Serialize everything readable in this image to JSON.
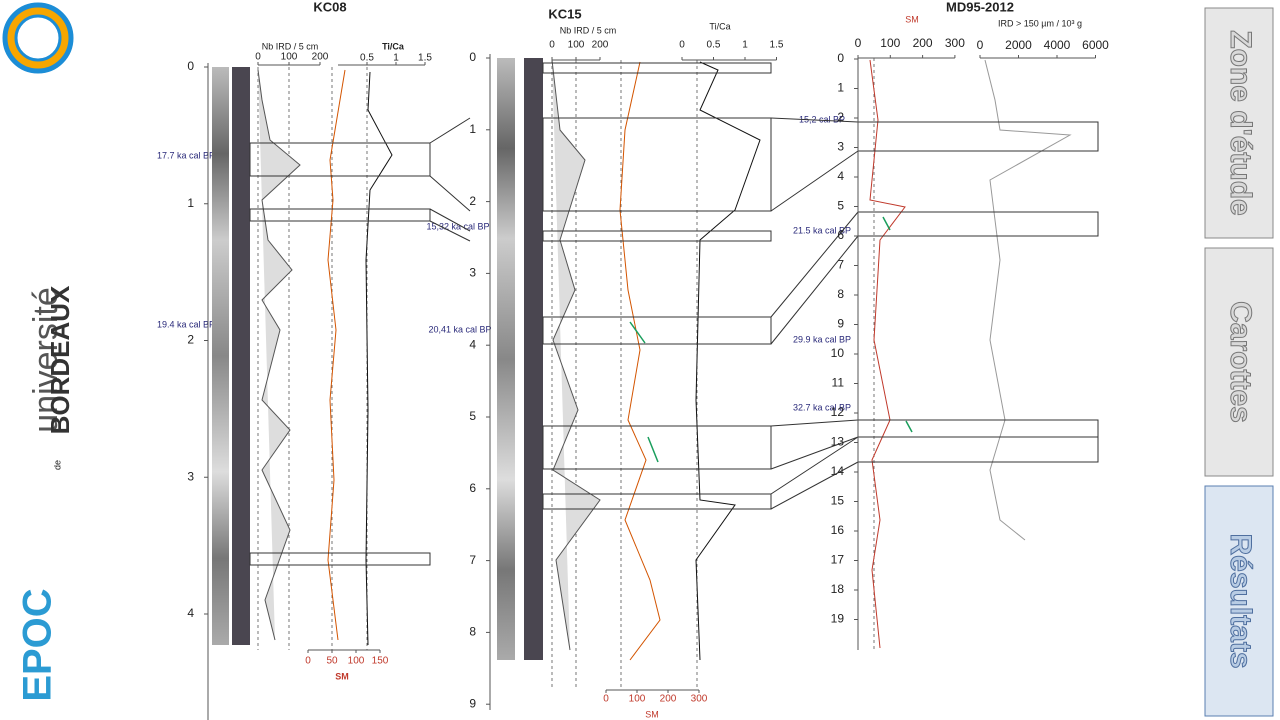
{
  "sidebar": {
    "university": "université",
    "university_de": "de",
    "university_name": "BORDEAUX",
    "lab": "EPOC"
  },
  "nav": [
    {
      "label": "Zone d'étude"
    },
    {
      "label": "Carottes"
    },
    {
      "label": "Résultats"
    }
  ],
  "cores": [
    {
      "name": "KC08",
      "depth_ticks": [
        0,
        1,
        2,
        3,
        4
      ],
      "ird_label": "Nb IRD / 5 cm",
      "ird_ticks": [
        0,
        100,
        200
      ],
      "tica_label": "Ti/Ca",
      "tica_ticks": [
        0.5,
        1,
        1.5
      ],
      "sm_label": "SM",
      "sm_ticks": [
        0,
        50,
        100,
        150
      ],
      "ages": [
        "17.7 ka cal BP",
        "19.4 ka cal BP"
      ]
    },
    {
      "name": "KC15",
      "depth_ticks": [
        0,
        1,
        2,
        3,
        4,
        5,
        6,
        7,
        8,
        9
      ],
      "ird_label": "Nb IRD / 5 cm",
      "ird_ticks": [
        0,
        100,
        200
      ],
      "tica_label": "Ti/Ca",
      "tica_ticks": [
        0,
        0.5,
        1,
        1.5
      ],
      "sm_label": "SM",
      "sm_ticks": [
        0,
        100,
        200,
        300
      ],
      "ages": [
        "15,32 ka cal BP",
        "20,41 ka cal BP"
      ]
    },
    {
      "name": "MD95-2012",
      "depth_ticks": [
        0,
        1,
        2,
        3,
        4,
        5,
        6,
        7,
        8,
        9,
        10,
        11,
        12,
        13,
        14,
        15,
        16,
        17,
        18,
        19
      ],
      "ird_label": "IRD > 150 µm / 10³ g",
      "ird_ticks": [
        0,
        2000,
        4000,
        6000
      ],
      "sm_label": "SM",
      "sm_ticks": [
        0,
        100,
        200,
        300
      ],
      "ages": [
        "15,2 cal BP",
        "21.5 ka cal BP",
        "29.9 ka cal BP",
        "32.7 ka cal BP"
      ]
    }
  ]
}
